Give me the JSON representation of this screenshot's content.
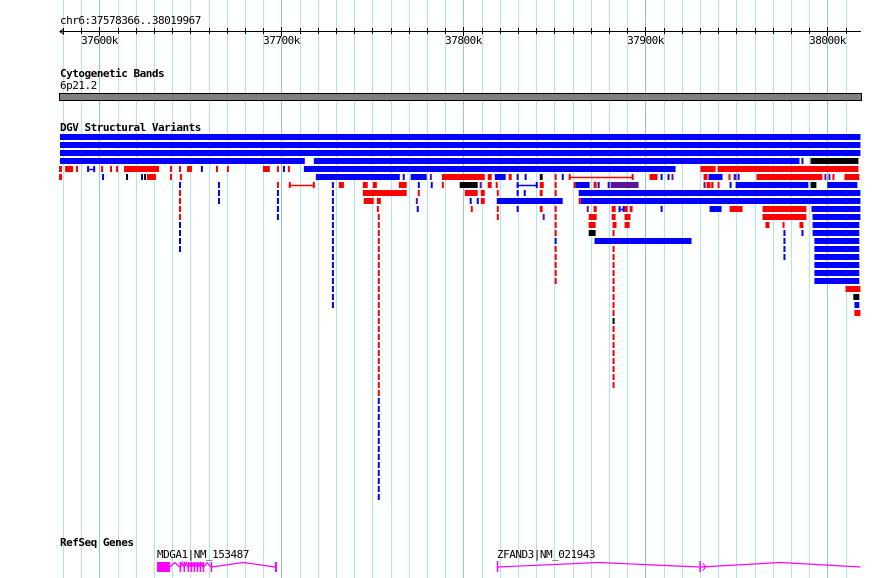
{
  "ruler": {
    "location": "chr6:37578366..38019967",
    "start_kb": 37578.366,
    "end_kb": 38019.967,
    "tick_labels": [
      "37600k",
      "37700k",
      "37800k",
      "37900k",
      "38000k"
    ],
    "tick_values_kb": [
      37600,
      37700,
      37800,
      37900,
      38000
    ]
  },
  "tracks": {
    "cytoband": {
      "title": "Cytogenetic Bands",
      "band": "6p21.2"
    },
    "dgv": {
      "title": "DGV Structural Variants"
    },
    "refseq": {
      "title": "RefSeq Genes"
    }
  },
  "colors": {
    "gain": "#0000ff",
    "loss": "#ff0000",
    "both": "#5a1496",
    "other": "#000000",
    "gene": "#ff00ff",
    "grid_minor": "#aee6ef",
    "grid_major": "#8ec6de",
    "band": "#808080"
  },
  "sv_rows": [
    [
      [
        37578.3,
        38018.1,
        "g"
      ]
    ],
    [
      [
        37578.3,
        38018.1,
        "g"
      ]
    ],
    [
      [
        37578.3,
        38018.1,
        "g"
      ]
    ],
    [
      [
        37578.3,
        37712.8,
        "g"
      ],
      [
        37717.8,
        37984.6,
        "g"
      ],
      [
        37985.7,
        37986.8,
        "g"
      ],
      [
        37990.7,
        38017,
        "o"
      ]
    ],
    [
      [
        37577.8,
        37579.4,
        "l"
      ],
      [
        37581.1,
        37585.5,
        "l"
      ],
      [
        37587.1,
        37587.7,
        "l"
      ],
      [
        37593.2,
        37597.6,
        "gL"
      ],
      [
        37600.9,
        37601.4,
        "l"
      ],
      [
        37605.8,
        37606.9,
        "l"
      ],
      [
        37609.1,
        37610.2,
        "l"
      ],
      [
        37613.5,
        37632.7,
        "l"
      ],
      [
        37638.7,
        37639.3,
        "l"
      ],
      [
        37643.7,
        37644.2,
        "l"
      ],
      [
        37648.1,
        37650.8,
        "l"
      ],
      [
        37655.7,
        37656.3,
        "g"
      ],
      [
        37664,
        37664.5,
        "l"
      ],
      [
        37670,
        37670.6,
        "l"
      ],
      [
        37689.8,
        37693.6,
        "l"
      ],
      [
        37697.5,
        37698,
        "l"
      ],
      [
        37700.8,
        37701.3,
        "g"
      ],
      [
        37703.5,
        37704,
        "l"
      ],
      [
        37712.3,
        37916.5,
        "g"
      ],
      [
        37930.2,
        37938.5,
        "l"
      ],
      [
        37939.6,
        38017,
        "l"
      ]
    ],
    [
      [
        37577.8,
        37579.4,
        "l"
      ],
      [
        37601.4,
        37602,
        "g"
      ],
      [
        37614.6,
        37615.1,
        "o"
      ],
      [
        37622.8,
        37623.4,
        "g"
      ],
      [
        37624.5,
        37625.6,
        "o"
      ],
      [
        37626.1,
        37631,
        "l"
      ],
      [
        37638.7,
        37639.3,
        "l"
      ],
      [
        37644.2,
        37644.8,
        "l"
      ],
      [
        37718.9,
        37765,
        "g"
      ],
      [
        37766.6,
        37767.7,
        "g"
      ],
      [
        37771,
        37779.8,
        "g"
      ],
      [
        37781.5,
        37782.6,
        "b"
      ],
      [
        37788.1,
        37811.7,
        "l"
      ],
      [
        37813.3,
        37815.5,
        "l"
      ],
      [
        37817.2,
        37823.2,
        "g"
      ],
      [
        37824.8,
        37826.5,
        "l"
      ],
      [
        37829.2,
        37830.3,
        "g"
      ],
      [
        37833.6,
        37834.2,
        "g"
      ],
      [
        37841.9,
        37843.5,
        "o"
      ],
      [
        37850.1,
        37850.6,
        "l"
      ],
      [
        37854,
        37854.5,
        "g"
      ],
      [
        37857.8,
        37893.5,
        "lL"
      ],
      [
        37902.2,
        37906.6,
        "l"
      ],
      [
        37908.3,
        37909.4,
        "g"
      ],
      [
        37912.1,
        37912.7,
        "g"
      ],
      [
        37914.3,
        37914.9,
        "b"
      ],
      [
        37931.9,
        37934.1,
        "l"
      ],
      [
        37934.6,
        37942.3,
        "g"
      ],
      [
        37945.6,
        37946.2,
        "l"
      ],
      [
        37948.4,
        37950,
        "b"
      ],
      [
        37950.6,
        37951.1,
        "g"
      ],
      [
        37961,
        37997.2,
        "l"
      ],
      [
        37998.3,
        37999.4,
        "b"
      ],
      [
        38000.5,
        38001,
        "b"
      ],
      [
        38002.7,
        38003.8,
        "l"
      ],
      [
        38009.3,
        38017.5,
        "l"
      ]
    ],
    [
      [
        37643.7,
        37644.2,
        "g"
      ],
      [
        37665.1,
        37665.6,
        "g"
      ],
      [
        37697.5,
        37698,
        "l"
      ],
      [
        37704,
        37718.3,
        "lL"
      ],
      [
        37727.7,
        37728.2,
        "g"
      ],
      [
        37731.5,
        37734.3,
        "l"
      ],
      [
        37744.7,
        37747.4,
        "l"
      ],
      [
        37750.2,
        37752.4,
        "l"
      ],
      [
        37764.5,
        37768.8,
        "l"
      ],
      [
        37774.9,
        37775.4,
        "g"
      ],
      [
        37782,
        37782.6,
        "g"
      ],
      [
        37788.1,
        37788.6,
        "l"
      ],
      [
        37797.9,
        37807.8,
        "o"
      ],
      [
        37808.9,
        37809.5,
        "b"
      ],
      [
        37813.3,
        37815.5,
        "l"
      ],
      [
        37817.7,
        37818.3,
        "l"
      ],
      [
        37829.2,
        37840.8,
        "gL"
      ],
      [
        37841.9,
        37844.1,
        "l"
      ],
      [
        37850.1,
        37850.6,
        "l"
      ],
      [
        37860.5,
        37861.6,
        "l"
      ],
      [
        37861.6,
        37869.3,
        "g"
      ],
      [
        37871.5,
        37873.2,
        "l"
      ],
      [
        37873.7,
        37874.3,
        "g"
      ],
      [
        37879.2,
        37879.7,
        "g"
      ],
      [
        37880.8,
        37896.2,
        "b"
      ],
      [
        37931.9,
        37932.4,
        "b"
      ],
      [
        37933.5,
        37935.7,
        "l"
      ],
      [
        37936.1,
        37937.4,
        "l"
      ],
      [
        37939.6,
        37940.1,
        "l"
      ],
      [
        37946.2,
        37946.7,
        "g"
      ],
      [
        37949.5,
        37989.5,
        "g"
      ],
      [
        37990.7,
        37993.9,
        "o"
      ],
      [
        37999.9,
        38016.4,
        "g"
      ]
    ],
    [
      [
        37643.7,
        37644.2,
        "l"
      ],
      [
        37665.1,
        37665.6,
        "g"
      ],
      [
        37697.5,
        37698,
        "g"
      ],
      [
        37727.7,
        37728.2,
        "g"
      ],
      [
        37744.7,
        37768.8,
        "l"
      ],
      [
        37774.9,
        37775.4,
        "l"
      ],
      [
        37800.7,
        37807.8,
        "l"
      ],
      [
        37809.5,
        37811.7,
        "l"
      ],
      [
        37818.3,
        37818.8,
        "l"
      ],
      [
        37829.2,
        37830.3,
        "g"
      ],
      [
        37833.1,
        37833.6,
        "g"
      ],
      [
        37841.9,
        37843.5,
        "l"
      ],
      [
        37850.1,
        37850.6,
        "l"
      ],
      [
        37863.3,
        38018.1,
        "g"
      ]
    ],
    [
      [
        37643.7,
        37644.2,
        "l"
      ],
      [
        37665.1,
        37665.6,
        "g"
      ],
      [
        37697.5,
        37698,
        "g"
      ],
      [
        37727.7,
        37728.2,
        "g"
      ],
      [
        37745.2,
        37750.7,
        "l"
      ],
      [
        37752.4,
        37754.6,
        "l"
      ],
      [
        37773.8,
        37774.3,
        "b"
      ],
      [
        37803.4,
        37804,
        "g"
      ],
      [
        37807.3,
        37807.8,
        "g"
      ],
      [
        37809.5,
        37811.7,
        "l"
      ],
      [
        37818.3,
        37854.5,
        "g"
      ],
      [
        37863.3,
        37864.4,
        "l"
      ],
      [
        37864.4,
        38018.1,
        "g"
      ]
    ],
    [
      [
        37643.7,
        37644.2,
        "l"
      ],
      [
        37697.5,
        37698,
        "g"
      ],
      [
        37727.7,
        37728.2,
        "g"
      ],
      [
        37752.4,
        37753.5,
        "l"
      ],
      [
        37774.3,
        37774.9,
        "g"
      ],
      [
        37804,
        37804.5,
        "l"
      ],
      [
        37818.3,
        37818.8,
        "l"
      ],
      [
        37829.2,
        37830.3,
        "g"
      ],
      [
        37841.9,
        37843.5,
        "l"
      ],
      [
        37850.1,
        37850.6,
        "l"
      ],
      [
        37867.7,
        37868.8,
        "b"
      ],
      [
        37871.5,
        37873.2,
        "l"
      ],
      [
        37881.4,
        37883.6,
        "l"
      ],
      [
        37885.2,
        37888.5,
        "gL"
      ],
      [
        37888.5,
        37890.2,
        "l"
      ],
      [
        37891.3,
        37892.9,
        "l"
      ],
      [
        37908.3,
        37908.8,
        "g"
      ],
      [
        37935.2,
        37941.8,
        "g"
      ],
      [
        37946.2,
        37953.3,
        "l"
      ],
      [
        37964.3,
        37988.4,
        "l"
      ],
      [
        37991.2,
        38018.1,
        "g"
      ]
    ],
    [
      [
        37643.7,
        37644.2,
        "l"
      ],
      [
        37697.5,
        37698,
        "g"
      ],
      [
        37727.7,
        37728.2,
        "g"
      ],
      [
        37752.9,
        37753.5,
        "l"
      ],
      [
        37818.3,
        37818.8,
        "l"
      ],
      [
        37843.5,
        37844.1,
        "b"
      ],
      [
        37850.1,
        37850.6,
        "l"
      ],
      [
        37868.8,
        37873.2,
        "l"
      ],
      [
        37881.4,
        37883.6,
        "l"
      ],
      [
        37888.5,
        37891.8,
        "l"
      ],
      [
        37964.3,
        37988.4,
        "l"
      ],
      [
        37991.8,
        38018.1,
        "g"
      ]
    ],
    [
      [
        37643.7,
        37644.2,
        "g"
      ],
      [
        37727.7,
        37728.2,
        "g"
      ],
      [
        37752.9,
        37753.5,
        "l"
      ],
      [
        37850.1,
        37850.6,
        "l"
      ],
      [
        37868.8,
        37872.6,
        "l"
      ],
      [
        37881.9,
        37884.1,
        "l"
      ],
      [
        37888.5,
        37891.3,
        "l"
      ],
      [
        37965.9,
        37968.1,
        "l"
      ],
      [
        37975.3,
        37975.8,
        "l"
      ],
      [
        37984.6,
        37986.8,
        "l"
      ],
      [
        37991.8,
        38017.5,
        "g"
      ]
    ],
    [
      [
        37643.7,
        37644.2,
        "g"
      ],
      [
        37727.7,
        37728.2,
        "g"
      ],
      [
        37752.9,
        37753.5,
        "l"
      ],
      [
        37850.1,
        37850.6,
        "l"
      ],
      [
        37868.8,
        37872.6,
        "o"
      ],
      [
        37881.9,
        37882.5,
        "l"
      ],
      [
        37975.8,
        37976.3,
        "g"
      ],
      [
        37985.7,
        37986.2,
        "g"
      ],
      [
        37991.8,
        38017.5,
        "g"
      ]
    ],
    [
      [
        37643.7,
        37644.2,
        "g"
      ],
      [
        37727.7,
        37728.2,
        "g"
      ],
      [
        37752.9,
        37753.5,
        "l"
      ],
      [
        37850.1,
        37850.6,
        "g"
      ],
      [
        37872,
        37925.3,
        "g"
      ],
      [
        37975.8,
        37976.3,
        "g"
      ],
      [
        37992.8,
        38017.5,
        "g"
      ]
    ],
    [
      [
        37643.7,
        37644.2,
        "g"
      ],
      [
        37727.7,
        37728.2,
        "g"
      ],
      [
        37752.9,
        37753.5,
        "l"
      ],
      [
        37850.1,
        37850.6,
        "l"
      ],
      [
        37881.9,
        37882.5,
        "l"
      ],
      [
        37975.8,
        37976.3,
        "g"
      ],
      [
        37992.8,
        38017.5,
        "g"
      ]
    ]
  ],
  "sv_columns": [
    {
      "s": 37727.7,
      "e": 37728.2,
      "from": 15,
      "to": 21,
      "t": "g"
    },
    {
      "s": 37752.9,
      "e": 37753.5,
      "from": 15,
      "to": 32,
      "t": "l"
    },
    {
      "s": 37752.9,
      "e": 37753.5,
      "from": 33,
      "to": 45,
      "t": "g"
    },
    {
      "s": 37850.1,
      "e": 37850.6,
      "from": 15,
      "to": 18,
      "t": "l"
    },
    {
      "s": 37881.9,
      "e": 37882.5,
      "from": 15,
      "to": 22,
      "t": "l"
    },
    {
      "s": 37881.9,
      "e": 37882.5,
      "from": 23,
      "to": 23,
      "t": "o"
    },
    {
      "s": 37881.9,
      "e": 37882.5,
      "from": 24,
      "to": 31,
      "t": "l"
    },
    {
      "s": 37975.8,
      "e": 37976.3,
      "from": 15,
      "to": 15,
      "t": "g"
    },
    {
      "s": 37992.8,
      "e": 38017.5,
      "from": 15,
      "to": 18,
      "t": "g"
    },
    {
      "s": 38009.9,
      "e": 38018.1,
      "from": 19,
      "to": 19,
      "t": "l"
    },
    {
      "s": 38014.2,
      "e": 38017.5,
      "from": 20,
      "to": 20,
      "t": "o"
    },
    {
      "s": 38014.8,
      "e": 38017.5,
      "from": 21,
      "to": 21,
      "t": "g"
    },
    {
      "s": 38014.8,
      "e": 38018.1,
      "from": 22,
      "to": 22,
      "t": "l"
    }
  ],
  "genes": [
    {
      "label": "MDGA1|NM_153487",
      "start": 37631.6,
      "end": 37697.5,
      "exons": [
        [
          37631.6,
          37638.7
        ],
        [
          37644.0,
          37644.6
        ],
        [
          37646.2,
          37646.8
        ],
        [
          37648.4,
          37649.0
        ],
        [
          37650.1,
          37650.7
        ],
        [
          37651.7,
          37652.3
        ],
        [
          37653.4,
          37654.0
        ],
        [
          37655.0,
          37655.6
        ],
        [
          37656.7,
          37657.3
        ],
        [
          37661.1,
          37661.7
        ],
        [
          37696.4,
          37697.5
        ]
      ]
    },
    {
      "label": "ZFAND3|NM_021943",
      "start": 37818.3,
      "end": 38018.1,
      "exons": [
        [
          37818.3,
          37818.9
        ],
        [
          37929.6,
          37930.2
        ]
      ]
    }
  ]
}
